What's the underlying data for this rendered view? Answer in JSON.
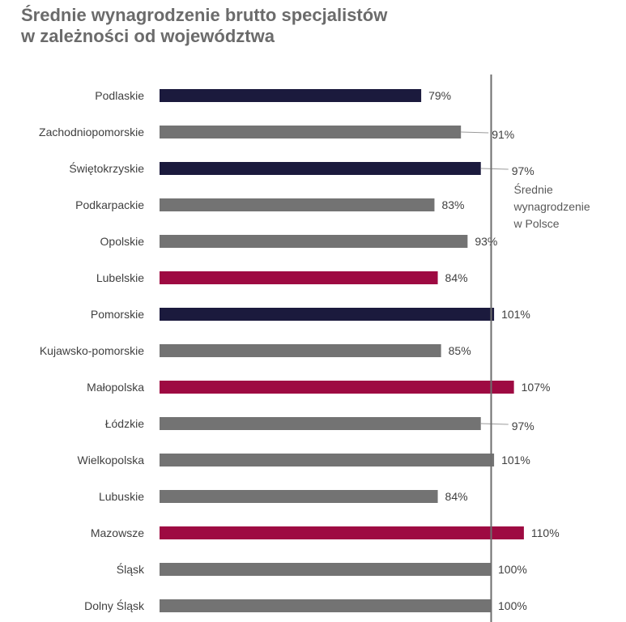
{
  "title_lines": [
    "Średnie wynagrodzenie brutto specjalistów",
    "w zależności od województwa"
  ],
  "reference_line": {
    "value": 100,
    "label_lines": [
      "Średnie",
      "wynagrodzenie",
      "w Polsce"
    ]
  },
  "colors": {
    "navy": "#1b1a3d",
    "gray": "#737373",
    "crimson": "#9e0a42",
    "reference": "#6e6e6e"
  },
  "chart_data": {
    "type": "bar",
    "orientation": "horizontal",
    "title": "Średnie wynagrodzenie brutto specjalistów w zależności od województwa",
    "unit": "%",
    "categories": [
      "Podlaskie",
      "Zachodniopomorskie",
      "Świętokrzyskie",
      "Podkarpackie",
      "Opolskie",
      "Lubelskie",
      "Pomorskie",
      "Kujawsko-pomorskie",
      "Małopolska",
      "Łódzkie",
      "Wielkopolska",
      "Lubuskie",
      "Mazowsze",
      "Śląsk",
      "Dolny Śląsk"
    ],
    "values": [
      79,
      91,
      97,
      83,
      93,
      84,
      101,
      85,
      107,
      97,
      101,
      84,
      110,
      100,
      100
    ],
    "labels": [
      "79%",
      "91%",
      "97%",
      "83%",
      "93%",
      "84%",
      "101%",
      "85%",
      "107%",
      "97%",
      "101%",
      "84%",
      "110%",
      "100%",
      "100%"
    ],
    "bar_colors": [
      "navy",
      "gray",
      "navy",
      "gray",
      "gray",
      "crimson",
      "navy",
      "gray",
      "crimson",
      "gray",
      "gray",
      "gray",
      "crimson",
      "gray",
      "gray"
    ],
    "xlim": [
      0,
      120
    ],
    "grid": false,
    "legend": "none"
  }
}
